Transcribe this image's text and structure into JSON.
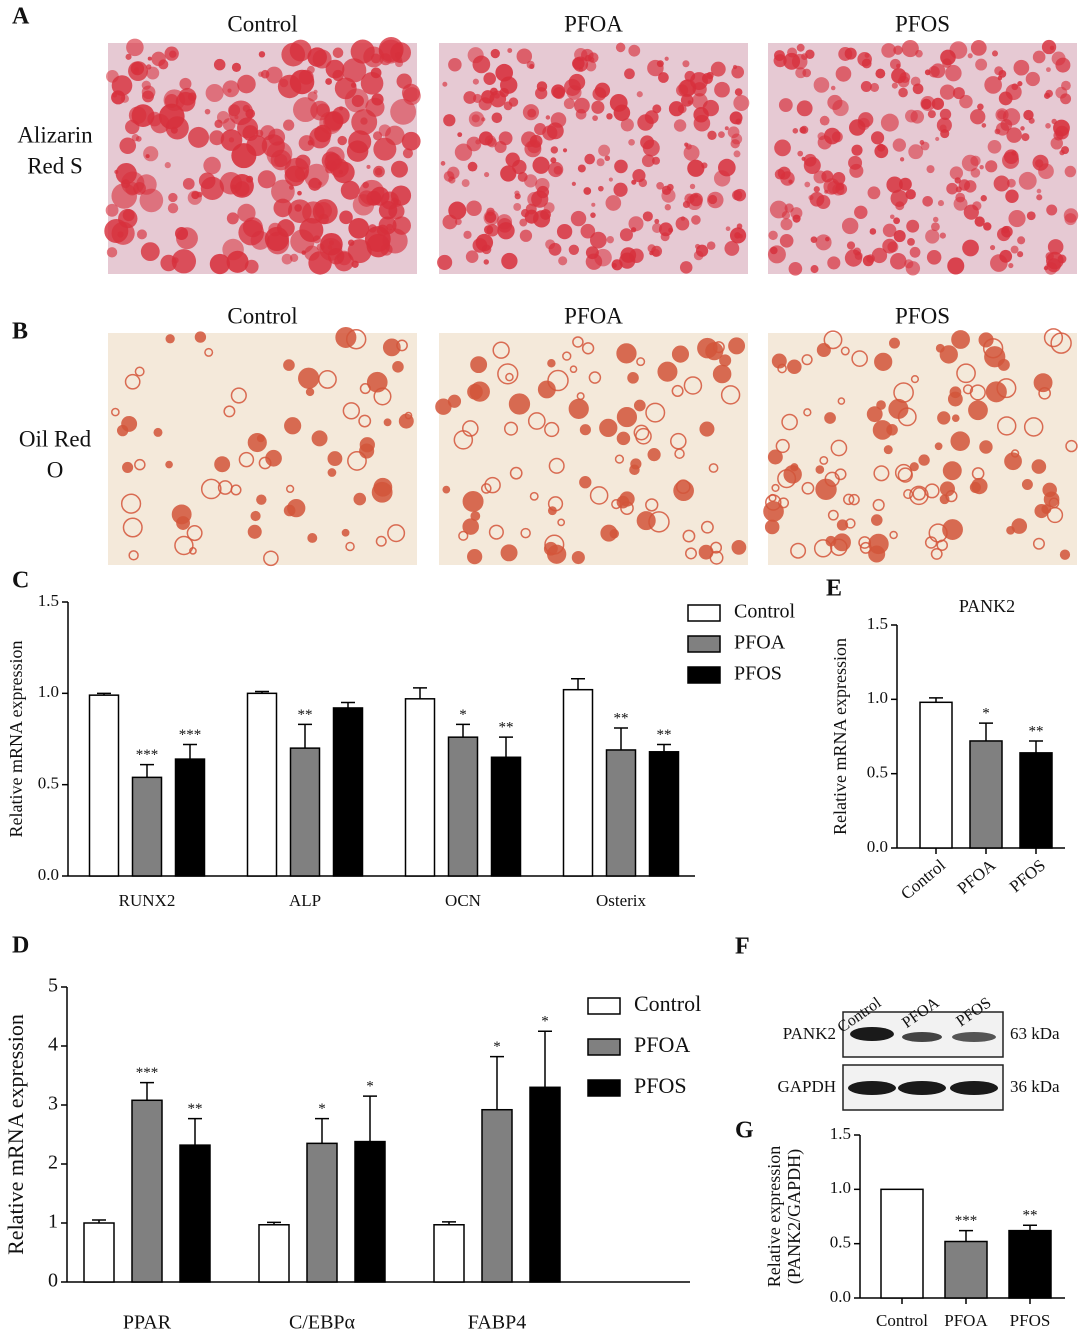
{
  "panel_labels": [
    "A",
    "B",
    "C",
    "D",
    "E",
    "F",
    "G"
  ],
  "micrographs": [
    {
      "row_label": [
        "Alizarin",
        "Red S"
      ],
      "columns": [
        "Control",
        "PFOA",
        "PFOS"
      ]
    },
    {
      "row_label": [
        "Oil Red",
        "O"
      ],
      "columns": [
        "Control",
        "PFOA",
        "PFOS"
      ]
    }
  ],
  "western_blot": {
    "lanes": [
      "Control",
      "PFOA",
      "PFOS"
    ],
    "proteins": [
      "PANK2",
      "GAPDH"
    ],
    "sizes": [
      "63 kDa",
      "36 kDa"
    ]
  },
  "chart_data": [
    {
      "type": "bar",
      "ylabel": [
        "Relative mRNA expression"
      ],
      "categories": [
        "RUNX2",
        "ALP",
        "OCN",
        "Osterix"
      ],
      "series": [
        {
          "name": "Control",
          "color": "#ffffff",
          "values": [
            0.99,
            1.0,
            0.97,
            1.02
          ],
          "errors": [
            0.01,
            0.01,
            0.06,
            0.06
          ]
        },
        {
          "name": "PFOA",
          "color": "#808080",
          "values": [
            0.54,
            0.7,
            0.76,
            0.69
          ],
          "errors": [
            0.07,
            0.13,
            0.07,
            0.12
          ],
          "significance": [
            "***",
            "**",
            "*",
            "**"
          ]
        },
        {
          "name": "PFOS",
          "color": "#000000",
          "values": [
            0.64,
            0.92,
            0.65,
            0.68
          ],
          "errors": [
            0.08,
            0.03,
            0.11,
            0.04
          ],
          "significance": [
            "***",
            null,
            "**",
            "**"
          ]
        }
      ],
      "ylim": [
        0,
        1.5
      ],
      "yticks": [
        {
          "value": 0,
          "label": "0.0"
        },
        {
          "value": 0.5,
          "label": "0.5"
        },
        {
          "value": 1,
          "label": "1.0"
        },
        {
          "value": 1.5,
          "label": "1.5"
        }
      ],
      "legend": "upper right"
    },
    {
      "type": "bar",
      "ylabel": [
        "Relative mRNA expression"
      ],
      "categories": [
        "PPAR",
        "C/EBPα",
        "FABP4"
      ],
      "series": [
        {
          "name": "Control",
          "color": "#ffffff",
          "values": [
            1.0,
            0.97,
            0.97
          ],
          "errors": [
            0.05,
            0.04,
            0.05
          ]
        },
        {
          "name": "PFOA",
          "color": "#808080",
          "values": [
            3.08,
            2.35,
            2.92
          ],
          "errors": [
            0.3,
            0.42,
            0.9
          ],
          "significance": [
            "***",
            "*",
            "*"
          ]
        },
        {
          "name": "PFOS",
          "color": "#000000",
          "values": [
            2.32,
            2.38,
            3.3
          ],
          "errors": [
            0.45,
            0.77,
            0.95
          ],
          "significance": [
            "**",
            "*",
            "*"
          ]
        }
      ],
      "ylim": [
        0,
        5
      ],
      "yticks": [
        0,
        1,
        2,
        3,
        4,
        5
      ],
      "legend": "upper right"
    },
    {
      "type": "bar",
      "title": "PANK2",
      "ylabel": [
        "Relative mRNA expression"
      ],
      "categories": [
        "Control",
        "PFOA",
        "PFOS"
      ],
      "values": [
        0.98,
        0.72,
        0.64
      ],
      "errors": [
        0.03,
        0.12,
        0.08
      ],
      "significance": [
        null,
        "*",
        "**"
      ],
      "colors": [
        "#ffffff",
        "#808080",
        "#000000"
      ],
      "ylim": [
        0,
        1.5
      ],
      "yticks": [
        {
          "value": 0,
          "label": "0.0"
        },
        {
          "value": 0.5,
          "label": "0.5"
        },
        {
          "value": 1,
          "label": "1.0"
        },
        {
          "value": 1.5,
          "label": "1.5"
        }
      ]
    },
    {
      "type": "bar",
      "ylabel": [
        "Relative expression",
        "(PANK2/GAPDH)"
      ],
      "categories": [
        "Control",
        "PFOA",
        "PFOS"
      ],
      "values": [
        1.0,
        0.52,
        0.62
      ],
      "errors": [
        null,
        0.1,
        0.05
      ],
      "significance": [
        null,
        "***",
        "**"
      ],
      "colors": [
        "#ffffff",
        "#808080",
        "#000000"
      ],
      "ylim": [
        0,
        1.5
      ],
      "yticks": [
        {
          "value": 0,
          "label": "0.0"
        },
        {
          "value": 0.5,
          "label": "0.5"
        },
        {
          "value": 1,
          "label": "1.0"
        },
        {
          "value": 1.5,
          "label": "1.5"
        }
      ]
    }
  ]
}
